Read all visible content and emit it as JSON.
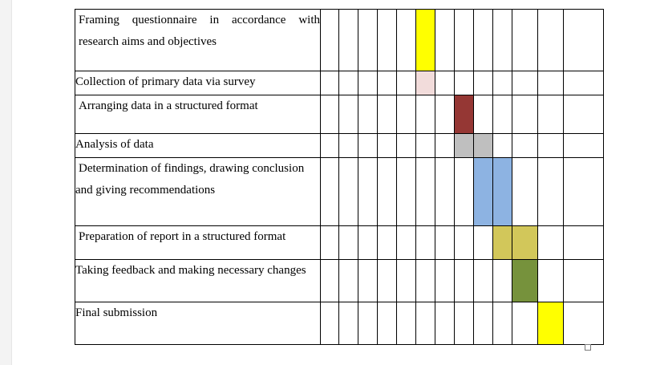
{
  "colors": {
    "yellow": "#ffff00",
    "pink": "#f2dcdb",
    "maroon": "#953734",
    "grey": "#bfbfbf",
    "blue": "#8db3e2",
    "olive_yellow": "#d2c75a",
    "green": "#76923c"
  },
  "weeks": 14,
  "rows": [
    {
      "task": "Framing questionnaire in accordance with research aims and objectives",
      "filled": [
        {
          "week": 6,
          "color": "#ffff00"
        }
      ]
    },
    {
      "task": "Collection of primary data via survey",
      "filled": [
        {
          "week": 6,
          "color": "#f2dcdb"
        }
      ]
    },
    {
      "task": "Arranging data in a structured format",
      "filled": [
        {
          "week": 8,
          "color": "#953734"
        }
      ]
    },
    {
      "task": "Analysis of data",
      "filled": [
        {
          "week": 8,
          "color": "#bfbfbf"
        },
        {
          "week": 9,
          "color": "#bfbfbf"
        }
      ]
    },
    {
      "task": "Determination of findings, drawing conclusion and giving recommendations",
      "filled": [
        {
          "week": 9,
          "color": "#8db3e2"
        },
        {
          "week": 10,
          "color": "#8db3e2"
        }
      ]
    },
    {
      "task": "Preparation of report in a structured format",
      "filled": [
        {
          "week": 10,
          "color": "#d2c75a"
        },
        {
          "week": 11,
          "color": "#d2c75a"
        }
      ]
    },
    {
      "task": "Taking feedback and making necessary changes",
      "filled": [
        {
          "week": 11,
          "color": "#76923c"
        }
      ]
    },
    {
      "task": "Final submission",
      "filled": [
        {
          "week": 12,
          "color": "#ffff00"
        }
      ]
    }
  ]
}
